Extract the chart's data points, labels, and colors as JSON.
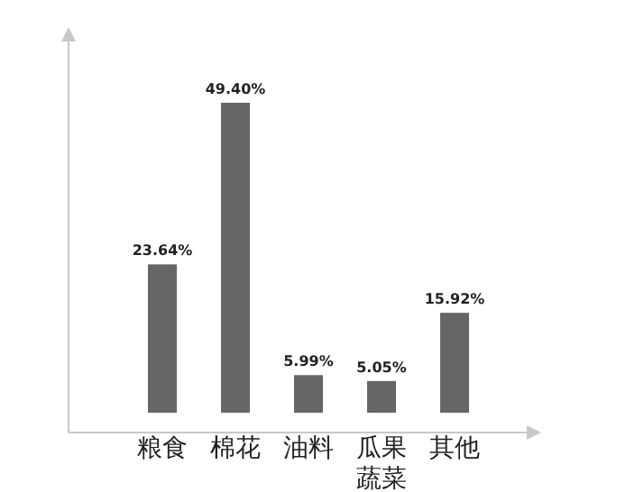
{
  "chart_data": {
    "type": "bar",
    "relative": false,
    "categories": [
      "粮食",
      "棉花",
      "油料",
      "瓜果蔬菜",
      "其他"
    ],
    "values": [
      23.64,
      49.4,
      5.99,
      5.05,
      15.92
    ],
    "value_labels": [
      "23.64%",
      "49.40%",
      "5.99%",
      "5.05%",
      "15.92%"
    ],
    "color": "#666666"
  }
}
